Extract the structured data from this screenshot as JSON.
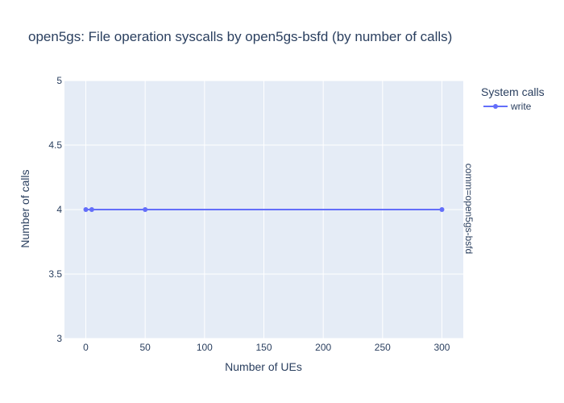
{
  "chart_data": {
    "type": "line",
    "title": "open5gs: File operation syscalls by open5gs-bsfd (by number of calls)",
    "xlabel": "Number of UEs",
    "ylabel": "Number of calls",
    "xlim": [
      -18,
      318
    ],
    "ylim": [
      3,
      5
    ],
    "x_ticks": [
      0,
      50,
      100,
      150,
      200,
      250,
      300
    ],
    "x_tick_labels": [
      "0",
      "50",
      "100",
      "150",
      "200",
      "250",
      "300"
    ],
    "y_ticks": [
      3,
      3.5,
      4,
      4.5,
      5
    ],
    "y_tick_labels": [
      "3",
      "3.5",
      "4",
      "4.5",
      "5"
    ],
    "grid": true,
    "legend_title": "System calls",
    "legend_placement": "top-right",
    "facet_label": "comm=open5gs-bsfd",
    "series": [
      {
        "name": "write",
        "color": "#636efa",
        "x": [
          0,
          5,
          50,
          300
        ],
        "y": [
          4,
          4,
          4,
          4
        ]
      }
    ]
  }
}
